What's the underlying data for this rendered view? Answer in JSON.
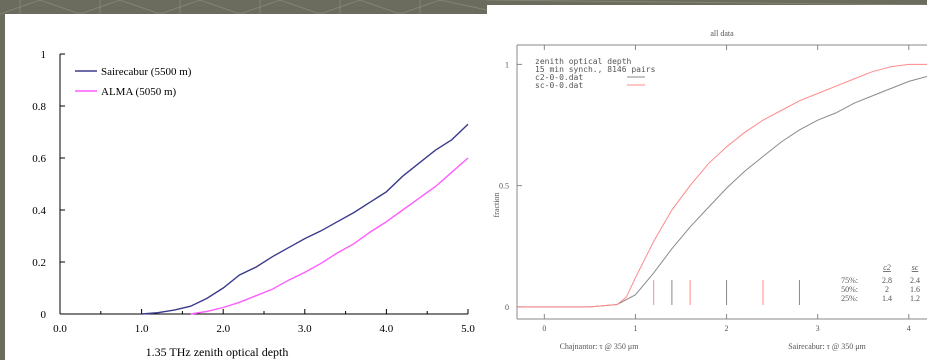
{
  "chart_data": [
    {
      "type": "line",
      "title": "",
      "xlabel": "1.35 THz zenith optical depth",
      "ylabel": "",
      "xlim": [
        0.0,
        5.0
      ],
      "ylim": [
        0,
        1
      ],
      "xticks": [
        "0.0",
        "1.0",
        "2.0",
        "3.0",
        "4.0",
        "5.0"
      ],
      "yticks": [
        "0",
        "0.2",
        "0.4",
        "0.6",
        "0.8",
        "1"
      ],
      "grid": false,
      "legend_position": "top-left",
      "series": [
        {
          "name": "Sairecabur (5500 m)",
          "color": "#3b3b8c",
          "x": [
            1.0,
            1.2,
            1.4,
            1.6,
            1.8,
            2.0,
            2.2,
            2.4,
            2.6,
            2.8,
            3.0,
            3.2,
            3.4,
            3.6,
            3.8,
            4.0,
            4.2,
            4.4,
            4.6,
            4.8,
            5.0
          ],
          "y": [
            0.0,
            0.005,
            0.015,
            0.03,
            0.06,
            0.1,
            0.15,
            0.18,
            0.22,
            0.255,
            0.29,
            0.32,
            0.355,
            0.39,
            0.43,
            0.47,
            0.53,
            0.58,
            0.63,
            0.67,
            0.73
          ]
        },
        {
          "name": "ALMA (5050 m)",
          "color": "#ff5cff",
          "x": [
            1.6,
            1.8,
            2.0,
            2.2,
            2.4,
            2.6,
            2.8,
            3.0,
            3.2,
            3.4,
            3.6,
            3.8,
            4.0,
            4.2,
            4.4,
            4.6,
            4.8,
            5.0
          ],
          "y": [
            0.0,
            0.01,
            0.025,
            0.045,
            0.07,
            0.095,
            0.13,
            0.16,
            0.195,
            0.235,
            0.27,
            0.315,
            0.355,
            0.4,
            0.445,
            0.49,
            0.545,
            0.6
          ]
        }
      ]
    },
    {
      "type": "line",
      "title": "all data",
      "xlabel_left": "Chajnantor: τ @ 350 μm",
      "xlabel_right": "Sairecabur: τ @ 350 μm",
      "ylabel": "fraction",
      "xlim": [
        -0.3,
        4.2
      ],
      "ylim": [
        -0.05,
        1.08
      ],
      "xticks": [
        "0",
        "1",
        "2",
        "3",
        "4"
      ],
      "yticks": [
        "0",
        "0.5",
        "1"
      ],
      "grid": false,
      "legend_position": "top-left",
      "legend_header": [
        "zenith optical depth",
        "15 min synch., 8146 pairs"
      ],
      "series": [
        {
          "name": "c2-0-0.dat",
          "color": "#8a8a8a",
          "x": [
            -0.3,
            0.5,
            0.8,
            1.0,
            1.2,
            1.4,
            1.6,
            1.8,
            2.0,
            2.2,
            2.4,
            2.6,
            2.8,
            3.0,
            3.2,
            3.4,
            3.6,
            3.8,
            4.0,
            4.2
          ],
          "y": [
            0.0,
            0.0,
            0.01,
            0.05,
            0.14,
            0.24,
            0.33,
            0.41,
            0.49,
            0.56,
            0.62,
            0.68,
            0.73,
            0.77,
            0.8,
            0.84,
            0.87,
            0.9,
            0.93,
            0.95
          ]
        },
        {
          "name": "sc-0-0.dat",
          "color": "#ff8a8a",
          "x": [
            -0.3,
            0.5,
            0.8,
            0.9,
            1.0,
            1.2,
            1.4,
            1.6,
            1.8,
            2.0,
            2.2,
            2.4,
            2.6,
            2.8,
            3.0,
            3.2,
            3.4,
            3.6,
            3.8,
            4.0,
            4.2
          ],
          "y": [
            0.0,
            0.0,
            0.01,
            0.04,
            0.12,
            0.27,
            0.4,
            0.5,
            0.59,
            0.66,
            0.72,
            0.77,
            0.81,
            0.85,
            0.88,
            0.91,
            0.94,
            0.97,
            0.99,
            1.0,
            1.0
          ]
        }
      ],
      "quartile_markers": [
        {
          "series": "c2-0-0.dat",
          "x": [
            1.4,
            2.0,
            2.8
          ]
        },
        {
          "series": "sc-0-0.dat",
          "x": [
            1.2,
            1.6,
            2.4
          ]
        }
      ],
      "quartile_table": {
        "headers": [
          "c2",
          "sc"
        ],
        "rows": [
          {
            "label": "75%:",
            "c2": "2.8",
            "sc": "2.4"
          },
          {
            "label": "50%:",
            "c2": "2",
            "sc": "1.6"
          },
          {
            "label": "25%:",
            "c2": "1.4",
            "sc": "1.2"
          }
        ]
      }
    }
  ]
}
